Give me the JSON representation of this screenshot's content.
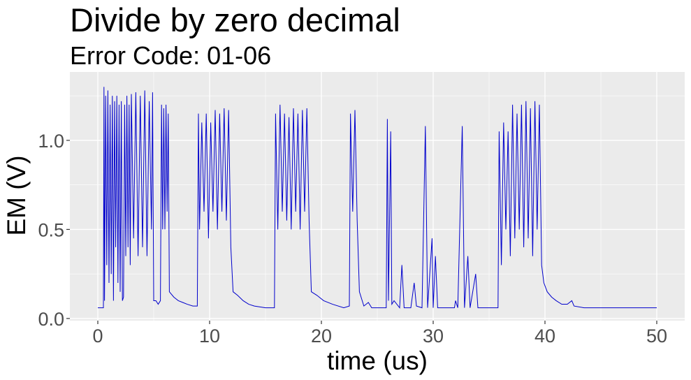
{
  "chart_data": {
    "type": "line",
    "title": "Divide by zero decimal",
    "subtitle": "Error Code: 01-06",
    "x_label": "time (us)",
    "y_label": "EM (V)",
    "xlim": [
      -2.5,
      52.5
    ],
    "ylim": [
      -0.012,
      1.384
    ],
    "xticks": [
      0,
      10,
      20,
      30,
      40,
      50
    ],
    "yticks": [
      {
        "value": 0,
        "label": "0.0"
      },
      0.5,
      {
        "value": 1,
        "label": "1.0"
      }
    ],
    "minor_xticks": [
      5,
      15,
      25,
      35,
      45
    ],
    "minor_yticks": [
      0.25,
      0.75,
      1.25
    ],
    "grid": true,
    "series": [
      {
        "color": "#0000cc",
        "x": [
          0,
          0.4,
          0.5,
          0.55,
          0.6,
          0.7,
          0.8,
          0.9,
          1.0,
          1.1,
          1.2,
          1.3,
          1.4,
          1.5,
          1.6,
          1.7,
          1.8,
          1.9,
          2.0,
          2.1,
          2.2,
          2.3,
          2.4,
          2.5,
          2.6,
          2.7,
          2.8,
          2.9,
          3.0,
          3.2,
          3.4,
          3.6,
          3.8,
          4.0,
          4.2,
          4.4,
          4.6,
          4.8,
          4.9,
          5.0,
          5.2,
          5.4,
          5.6,
          5.7,
          5.8,
          5.9,
          6.0,
          6.1,
          6.2,
          6.3,
          6.4,
          6.8,
          7.2,
          7.6,
          8.0,
          8.5,
          8.9,
          9.0,
          9.1,
          9.3,
          9.5,
          9.7,
          9.9,
          10.1,
          10.3,
          10.5,
          10.7,
          10.9,
          11.1,
          11.3,
          11.5,
          11.7,
          11.9,
          12.1,
          12.5,
          13.0,
          13.5,
          14.0,
          15.0,
          15.8,
          15.9,
          16.1,
          16.3,
          16.5,
          16.7,
          16.9,
          17.1,
          17.3,
          17.5,
          17.7,
          17.9,
          18.1,
          18.3,
          18.5,
          18.7,
          18.9,
          19.1,
          19.6,
          20.2,
          21,
          22,
          22.5,
          22.6,
          22.8,
          23.0,
          23.2,
          23.4,
          23.8,
          24.2,
          24.5,
          25.8,
          25.9,
          26.0,
          26.2,
          26.3,
          26.5,
          27.0,
          27.2,
          27.4,
          28.0,
          28.3,
          28.5,
          29.0,
          29.3,
          29.5,
          29.9,
          30.0,
          30.2,
          30.4,
          31.9,
          32.0,
          32.2,
          32.6,
          32.8,
          33.1,
          33.3,
          33.8,
          34.0,
          35.8,
          35.9,
          36.1,
          36.3,
          36.5,
          36.7,
          36.9,
          37.1,
          37.3,
          37.5,
          37.7,
          37.9,
          38.1,
          38.3,
          38.5,
          38.7,
          38.9,
          39.1,
          39.3,
          39.5,
          39.7,
          39.9,
          40.2,
          40.6,
          41.0,
          41.5,
          42.0,
          42.4,
          42.6,
          43.5,
          50
        ],
        "values": [
          0.06,
          0.06,
          0.06,
          1.3,
          0.1,
          1.25,
          0.3,
          1.28,
          0.2,
          1.2,
          0.25,
          1.25,
          0.1,
          1.22,
          0.4,
          1.25,
          0.2,
          1.2,
          0.15,
          1.22,
          0.1,
          0.12,
          1.2,
          0.35,
          1.25,
          0.4,
          1.2,
          0.3,
          1.26,
          0.45,
          1.27,
          0.35,
          1.25,
          0.4,
          1.28,
          0.35,
          1.22,
          0.5,
          1.27,
          0.1,
          0.1,
          0.08,
          0.1,
          1.2,
          0.5,
          1.18,
          0.5,
          1.2,
          0.6,
          1.15,
          0.15,
          0.12,
          0.1,
          0.09,
          0.08,
          0.07,
          0.07,
          1.15,
          0.5,
          1.1,
          0.6,
          1.15,
          0.45,
          1.1,
          0.6,
          1.17,
          0.5,
          1.15,
          0.6,
          1.18,
          0.55,
          1.17,
          0.4,
          0.15,
          0.13,
          0.1,
          0.08,
          0.07,
          0.06,
          0.06,
          1.15,
          0.5,
          1.2,
          0.6,
          1.15,
          0.55,
          1.13,
          0.5,
          1.18,
          0.6,
          1.15,
          0.5,
          1.17,
          0.6,
          1.18,
          0.55,
          0.15,
          0.13,
          0.1,
          0.08,
          0.06,
          0.07,
          1.15,
          0.6,
          1.17,
          0.55,
          0.15,
          0.07,
          0.09,
          0.06,
          0.06,
          1.12,
          0.1,
          1.05,
          0.08,
          0.1,
          0.06,
          0.3,
          0.06,
          0.06,
          0.2,
          0.07,
          0.06,
          1.08,
          0.06,
          0.45,
          0.06,
          0.35,
          0.06,
          0.06,
          0.1,
          0.06,
          1.08,
          0.06,
          0.35,
          0.06,
          0.25,
          0.06,
          0.06,
          1.05,
          0.3,
          1.1,
          0.5,
          1.05,
          0.35,
          1.2,
          0.45,
          1.15,
          0.5,
          1.2,
          0.4,
          1.22,
          0.45,
          1.18,
          0.35,
          1.22,
          0.5,
          1.2,
          0.3,
          0.2,
          0.15,
          0.12,
          0.1,
          0.08,
          0.08,
          0.1,
          0.07,
          0.06,
          0.06
        ]
      }
    ]
  }
}
